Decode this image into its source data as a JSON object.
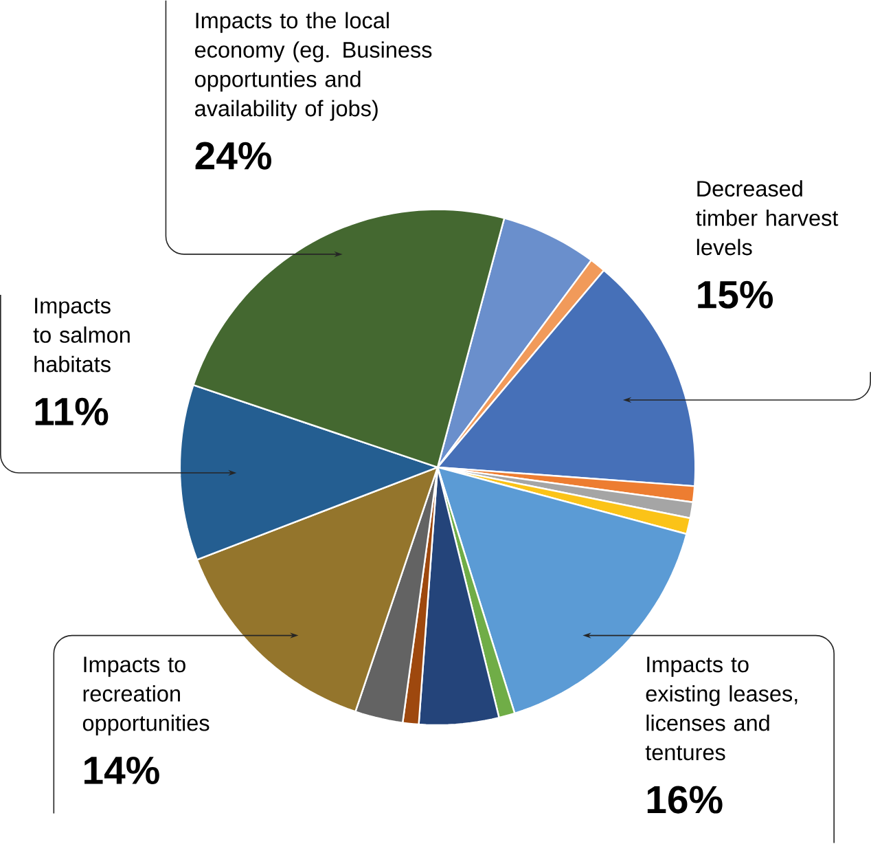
{
  "chart_data": {
    "type": "pie",
    "categories": [
      null,
      null,
      "Decreased timber harvest levels",
      null,
      null,
      null,
      "Impacts to existing leases, licenses and tentures",
      null,
      null,
      null,
      null,
      "Impacts to recreation opportunities",
      "Impacts to salmon habitats",
      "Impacts to the local economy (eg. Business opportunties and availability of jobs)"
    ],
    "values": [
      6,
      1,
      15,
      1,
      1,
      1,
      16,
      1,
      5,
      1,
      3,
      14,
      11,
      24
    ],
    "value_labels": [
      null,
      null,
      "15%",
      null,
      null,
      null,
      "16%",
      null,
      null,
      null,
      null,
      "14%",
      "11%",
      "24%"
    ],
    "colors": [
      "#6a8fcc",
      "#f19a5a",
      "#4670b8",
      "#ed7d31",
      "#a5a5a5",
      "#fbc318",
      "#5b9bd5",
      "#70ad47",
      "#24447a",
      "#9e480e",
      "#636363",
      "#94752c",
      "#245e91",
      "#446830"
    ]
  }
}
